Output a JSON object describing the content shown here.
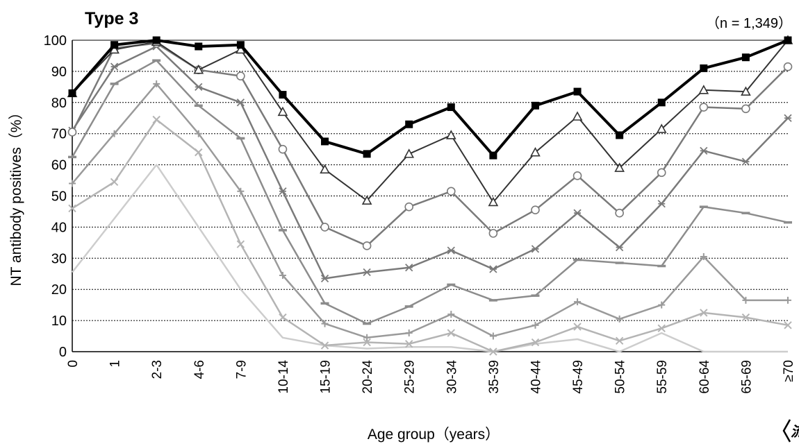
{
  "chart_data": {
    "type": "line",
    "title": "Type 3",
    "sample_size": "（n = 1,349）",
    "xlabel": "Age group（years）",
    "ylabel": "NT antibody positives（%）",
    "ylim": [
      0,
      100
    ],
    "yticks": [
      0,
      10,
      20,
      30,
      40,
      50,
      60,
      70,
      80,
      90,
      100
    ],
    "grid": "horizontal dotted",
    "categories": [
      "0",
      "1",
      "2-3",
      "4-6",
      "7-9",
      "10-14",
      "15-19",
      "20-24",
      "25-29",
      "30-34",
      "35-39",
      "40-44",
      "45-49",
      "50-54",
      "55-59",
      "60-64",
      "65-69",
      "≥70"
    ],
    "series": [
      {
        "marker": "square",
        "color": "#000000",
        "width": 4,
        "values": [
          83,
          98.5,
          100,
          98,
          98.5,
          82.5,
          67.5,
          63.5,
          73,
          78.5,
          63,
          79,
          83.5,
          69.5,
          80,
          91,
          94.5,
          100
        ]
      },
      {
        "marker": "triangle",
        "color": "#333333",
        "width": 2,
        "values": [
          83,
          97,
          99.5,
          90.5,
          97,
          77,
          58.5,
          48.5,
          63.5,
          69.5,
          48,
          64,
          75.5,
          59,
          71.5,
          84,
          83.5,
          100
        ]
      },
      {
        "marker": "circle",
        "color": "#7a7a7a",
        "width": 2.5,
        "values": [
          70.5,
          97.5,
          99,
          90.5,
          88.5,
          65,
          40,
          34,
          46.5,
          51.5,
          38,
          45.5,
          56.5,
          44.5,
          57.5,
          78.5,
          78,
          91.5
        ]
      },
      {
        "marker": "asterisk",
        "color": "#7a7a7a",
        "width": 2.5,
        "values": [
          71,
          91.5,
          98,
          85,
          80,
          51.5,
          23.5,
          25.5,
          27,
          32.5,
          26.5,
          33,
          44.5,
          33.5,
          47.5,
          64.5,
          61,
          75
        ]
      },
      {
        "marker": "dash",
        "color": "#8c8c8c",
        "width": 2.5,
        "values": [
          62.5,
          86,
          93.5,
          79,
          68.5,
          39,
          15.5,
          9,
          14.5,
          21.5,
          16.5,
          18,
          29.5,
          28.5,
          27.5,
          46.5,
          44.5,
          41.5
        ]
      },
      {
        "marker": "plus",
        "color": "#9a9a9a",
        "width": 2.5,
        "values": [
          54,
          70,
          86,
          70,
          51.5,
          24.5,
          9,
          4.5,
          6,
          12,
          5,
          8.5,
          16,
          10.5,
          15,
          30.5,
          16.5,
          16.5
        ]
      },
      {
        "marker": "x",
        "color": "#b4b4b4",
        "width": 2.5,
        "values": [
          46,
          54.5,
          74.5,
          64,
          34.5,
          11,
          2,
          3,
          2.5,
          6,
          0,
          3,
          8,
          3.5,
          7.5,
          12.5,
          11,
          8.5
        ]
      },
      {
        "marker": "none",
        "color": "#cdcdcd",
        "width": 2.5,
        "values": [
          25.5,
          null,
          60,
          null,
          20,
          4.5,
          2,
          1,
          1.5,
          1.5,
          0,
          2.5,
          4,
          0,
          6,
          0,
          0,
          0
        ]
      }
    ]
  },
  "badge": "流"
}
